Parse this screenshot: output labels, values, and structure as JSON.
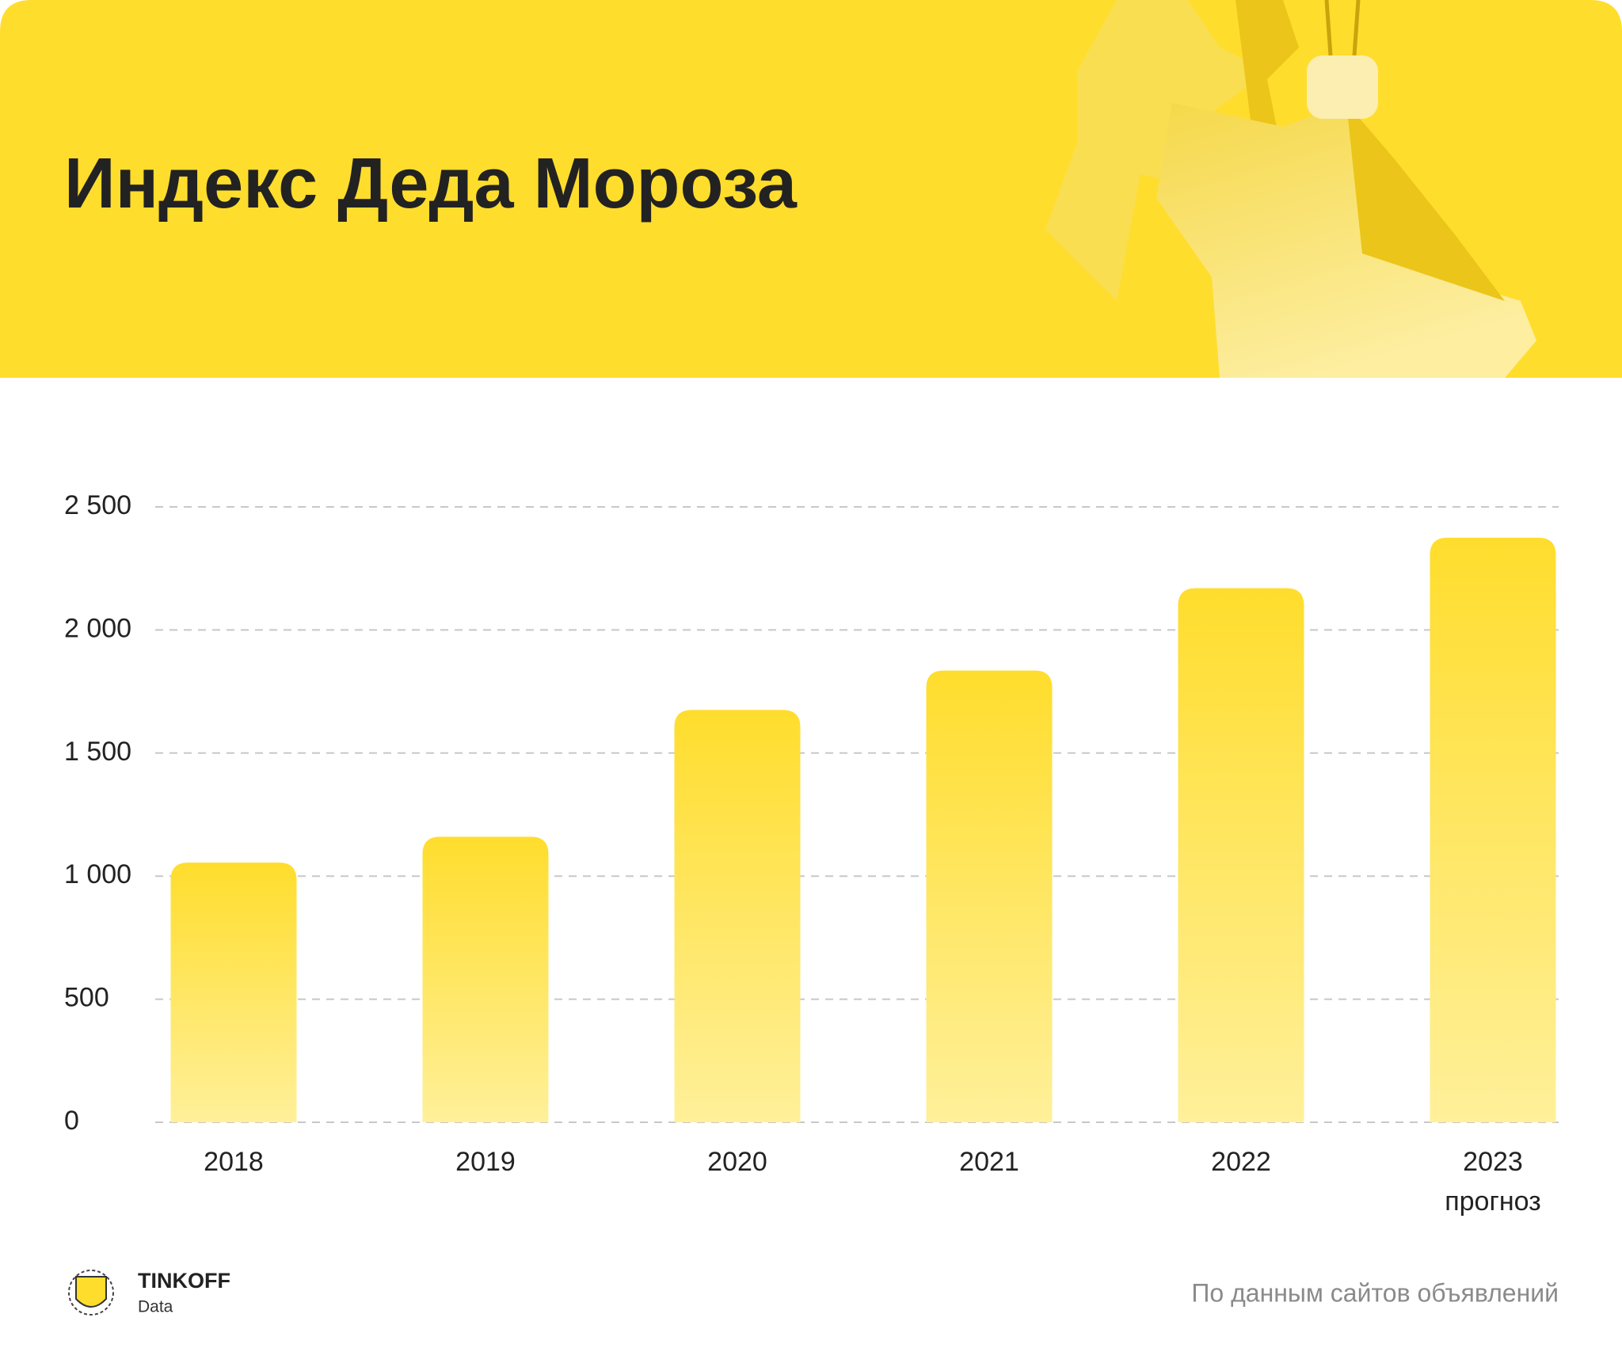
{
  "chart_data": {
    "type": "bar",
    "title": "Индекс Деда Мороза",
    "categories": [
      "2018",
      "2019",
      "2020",
      "2021",
      "2022",
      "2023"
    ],
    "forecast_note": "прогноз",
    "values": [
      1055,
      1160,
      1675,
      1835,
      2170,
      2375
    ],
    "color": "#ffdd2d",
    "ylim": [
      0,
      2500
    ],
    "yticks": [
      0,
      500,
      {
        "value": 1000,
        "label": "1 000"
      },
      {
        "value": 1500,
        "label": "1 500"
      },
      {
        "value": 2000,
        "label": "2 000"
      },
      {
        "value": 2500,
        "label": "2 500"
      }
    ],
    "grid": true,
    "source": "По данным сайтов объявлений",
    "brand": "TINKOFF",
    "brand_sub": "Data"
  }
}
